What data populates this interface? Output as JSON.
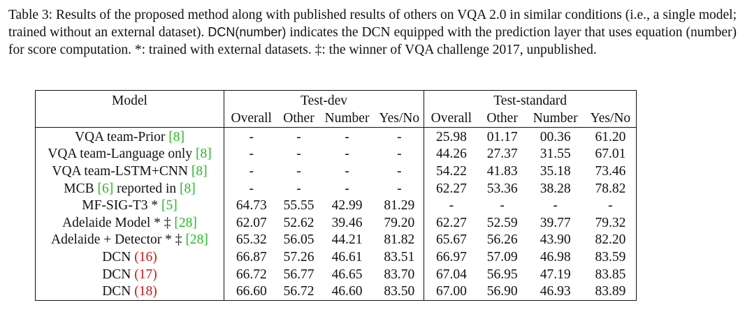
{
  "caption": {
    "part1": "Table 3: Results of the proposed method along with published results of others on VQA 2.0 in similar conditions (i.e., a single model; trained without an external dataset).",
    "dcn_label": "DCN(number)",
    "part2": "indicates the DCN equipped with the prediction layer that uses equation (number) for score computation.  *: trained with external datasets.  ‡: the winner of VQA challenge 2017, unpublished."
  },
  "table": {
    "header": {
      "model": "Model",
      "test_dev": "Test-dev",
      "test_standard": "Test-standard",
      "subcolumns": [
        "Overall",
        "Other",
        "Number",
        "Yes/No",
        "Overall",
        "Other",
        "Number",
        "Yes/No"
      ]
    },
    "rows": [
      {
        "model_name": "VQA team-Prior ",
        "model_refs": "[8]",
        "model_suffix": "",
        "values": [
          "-",
          "-",
          "-",
          "-",
          "25.98",
          "01.17",
          "00.36",
          "61.20"
        ],
        "bold": [
          false,
          false,
          false,
          false,
          false,
          false,
          false,
          false
        ]
      },
      {
        "model_name": "VQA team-Language only ",
        "model_refs": "[8]",
        "model_suffix": "",
        "values": [
          "-",
          "-",
          "-",
          "-",
          "44.26",
          "27.37",
          "31.55",
          "67.01"
        ],
        "bold": [
          false,
          false,
          false,
          false,
          false,
          false,
          false,
          false
        ]
      },
      {
        "model_name": "VQA team-LSTM+CNN ",
        "model_refs": "[8]",
        "model_suffix": "",
        "values": [
          "-",
          "-",
          "-",
          "-",
          "54.22",
          "41.83",
          "35.18",
          "73.46"
        ],
        "bold": [
          false,
          false,
          false,
          false,
          false,
          false,
          false,
          false
        ]
      },
      {
        "model_name": "MCB ",
        "model_refs": "[6]",
        "model_suffix": " reported in ",
        "model_refs2": "[8]",
        "values": [
          "-",
          "-",
          "-",
          "-",
          "62.27",
          "53.36",
          "38.28",
          "78.82"
        ],
        "bold": [
          false,
          false,
          false,
          false,
          false,
          false,
          false,
          false
        ]
      },
      {
        "model_name": "MF-SIG-T3 * ",
        "model_refs": "[5]",
        "model_suffix": "",
        "values": [
          "64.73",
          "55.55",
          "42.99",
          "81.29",
          "-",
          "-",
          "-",
          "-"
        ],
        "bold": [
          false,
          false,
          false,
          false,
          false,
          false,
          false,
          false
        ]
      },
      {
        "model_name": "Adelaide Model * ‡ ",
        "model_refs": "[28]",
        "model_suffix": "",
        "values": [
          "62.07",
          "52.62",
          "39.46",
          "79.20",
          "62.27",
          "52.59",
          "39.77",
          "79.32"
        ],
        "bold": [
          false,
          false,
          false,
          false,
          false,
          false,
          false,
          false
        ]
      },
      {
        "model_name": "Adelaide + Detector * ‡ ",
        "model_refs": "[28]",
        "model_suffix": "",
        "values": [
          "65.32",
          "56.05",
          "44.21",
          "81.82",
          "65.67",
          "56.26",
          "43.90",
          "82.20"
        ],
        "bold": [
          false,
          false,
          false,
          false,
          false,
          false,
          false,
          false
        ]
      },
      {
        "model_name": "DCN ",
        "model_eq": "(16)",
        "values": [
          "66.87",
          "57.26",
          "46.61",
          "83.51",
          "66.97",
          "57.09",
          "46.98",
          "83.59"
        ],
        "bold": [
          true,
          true,
          false,
          false,
          false,
          true,
          false,
          false
        ]
      },
      {
        "model_name": "DCN ",
        "model_eq": "(17)",
        "values": [
          "66.72",
          "56.77",
          "46.65",
          "83.70",
          "67.04",
          "56.95",
          "47.19",
          "83.85"
        ],
        "bold": [
          false,
          false,
          true,
          true,
          true,
          false,
          true,
          false
        ]
      },
      {
        "model_name": "DCN ",
        "model_eq": "(18)",
        "values": [
          "66.60",
          "56.72",
          "46.60",
          "83.50",
          "67.00",
          "56.90",
          "46.93",
          "83.89"
        ],
        "bold": [
          false,
          false,
          false,
          false,
          false,
          false,
          false,
          true
        ]
      }
    ]
  },
  "colors": {
    "reference_link": "#22bb22",
    "equation_link": "#dd1111",
    "text": "#111111"
  }
}
